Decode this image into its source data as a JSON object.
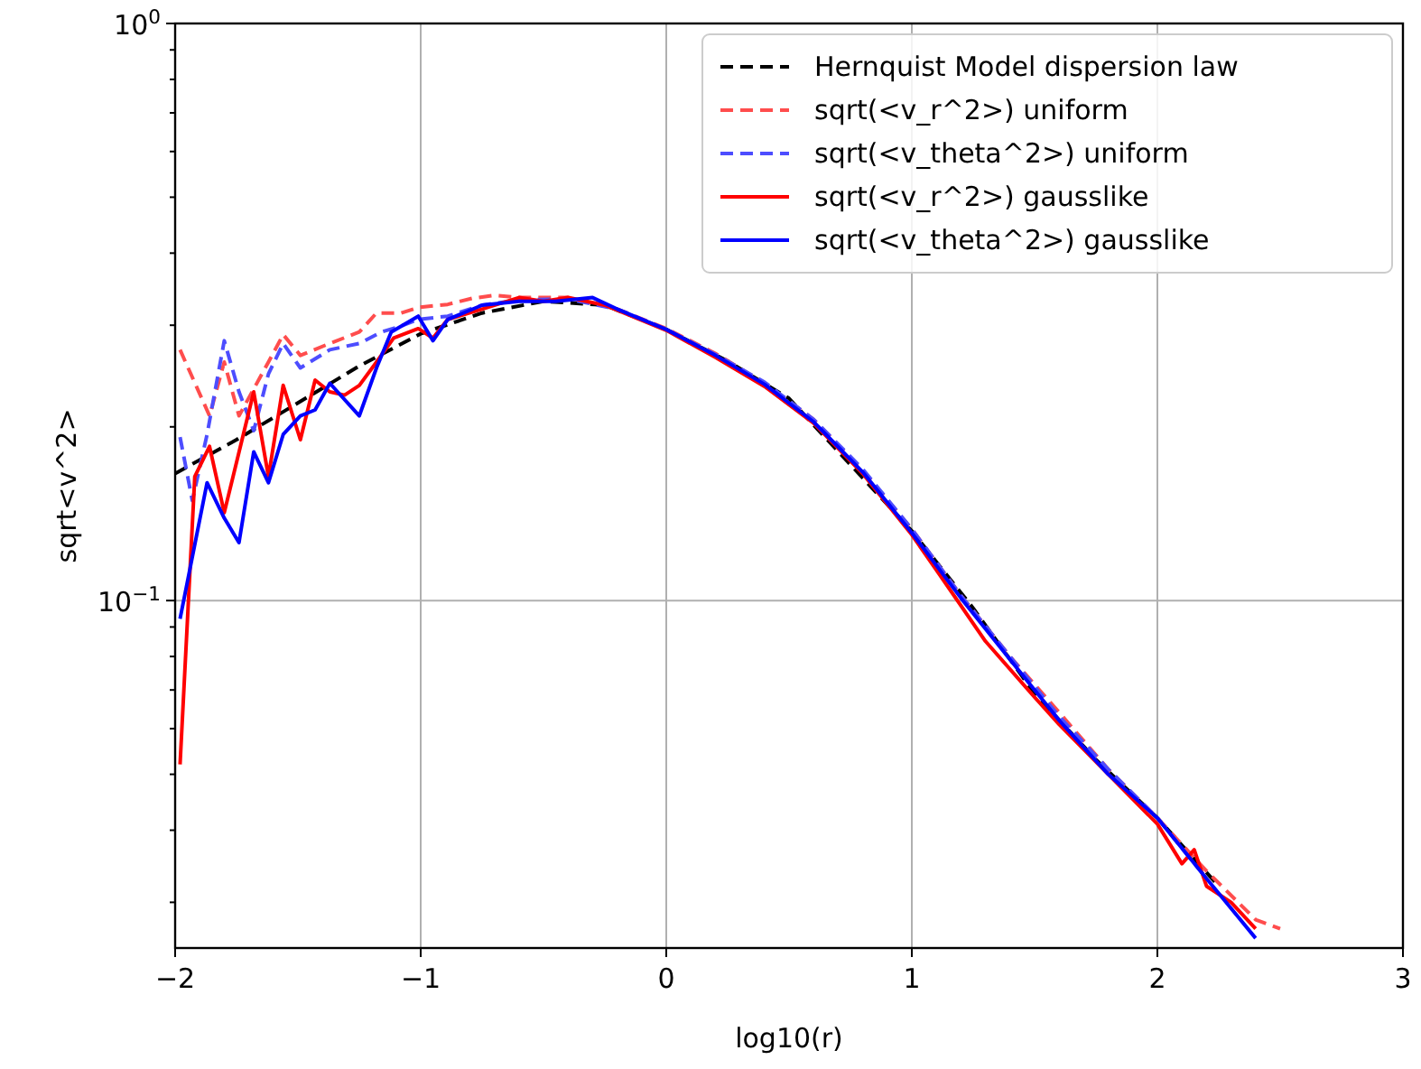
{
  "chart_data": {
    "type": "line",
    "xlabel": "log10(r)",
    "ylabel": "sqrt<v^2>",
    "log": "y",
    "grid": true,
    "legend": "top right",
    "xlim": [
      -2,
      3
    ],
    "ylim": [
      0.025,
      1
    ],
    "xticks": [
      {
        "value": -2,
        "label": "−2"
      },
      {
        "value": -1,
        "label": "−1"
      },
      0,
      1,
      2,
      3
    ],
    "yticks": [
      {
        "value": 0.03,
        "label": null
      },
      {
        "value": 0.04,
        "label": null
      },
      {
        "value": 0.05,
        "label": null
      },
      {
        "value": 0.06,
        "label": null
      },
      {
        "value": 0.07,
        "label": null
      },
      {
        "value": 0.08,
        "label": null
      },
      {
        "value": 0.09,
        "label": null
      },
      {
        "value": 0.1,
        "label": "10$^{−1}$"
      },
      {
        "value": 0.2,
        "label": null
      },
      {
        "value": 0.3,
        "label": null
      },
      {
        "value": 0.4,
        "label": null
      },
      {
        "value": 0.5,
        "label": null
      },
      {
        "value": 0.6,
        "label": null
      },
      {
        "value": 0.7,
        "label": null
      },
      {
        "value": 0.8,
        "label": null
      },
      {
        "value": 0.9,
        "label": null
      },
      {
        "value": 1,
        "label": "10$^{0}$"
      }
    ],
    "series": [
      {
        "name": "Hernquist Model dispersion law",
        "color": "#000000",
        "line_style": "dashed",
        "x": [
          -2,
          -1.75,
          -1.5,
          -1.25,
          -1,
          -0.75,
          -0.5,
          -0.25,
          0,
          0.25,
          0.5,
          0.75,
          1,
          1.25,
          1.5,
          1.75,
          2,
          2.25
        ],
        "values": [
          0.166,
          0.19,
          0.22,
          0.255,
          0.29,
          0.315,
          0.33,
          0.325,
          0.295,
          0.26,
          0.224,
          0.172,
          0.132,
          0.097,
          0.069,
          0.053,
          0.042,
          0.032
        ]
      },
      {
        "name": "sqrt(<v_r^2>) uniform",
        "color": "#ff4d4d",
        "line_style": "dashed",
        "x": [
          -1.98,
          -1.86,
          -1.8,
          -1.74,
          -1.62,
          -1.56,
          -1.49,
          -1.37,
          -1.25,
          -1.18,
          -1.08,
          -1.01,
          -0.89,
          -0.79,
          -0.7,
          -0.6,
          -0.4,
          -0.2,
          0,
          0.2,
          0.4,
          0.6,
          0.8,
          1,
          1.2,
          1.4,
          1.6,
          1.8,
          2,
          2.2,
          2.4,
          2.5
        ],
        "values": [
          0.272,
          0.209,
          0.259,
          0.209,
          0.259,
          0.289,
          0.266,
          0.279,
          0.292,
          0.315,
          0.315,
          0.322,
          0.326,
          0.334,
          0.338,
          0.335,
          0.335,
          0.32,
          0.296,
          0.268,
          0.238,
          0.206,
          0.168,
          0.133,
          0.102,
          0.08,
          0.064,
          0.051,
          0.042,
          0.034,
          0.028,
          0.027
        ]
      },
      {
        "name": "sqrt(<v_theta^2>) uniform",
        "color": "#4d4dff",
        "line_style": "dashed",
        "x": [
          -1.98,
          -1.93,
          -1.87,
          -1.8,
          -1.74,
          -1.68,
          -1.62,
          -1.56,
          -1.49,
          -1.37,
          -1.25,
          -1.16,
          -1.08,
          -1.01,
          -0.89,
          -0.75,
          -0.6,
          -0.4,
          -0.2,
          0,
          0.2,
          0.4,
          0.6,
          0.8,
          1,
          1.2,
          1.4,
          1.6,
          1.8,
          2,
          2.2
        ],
        "values": [
          0.192,
          0.149,
          0.194,
          0.282,
          0.23,
          0.197,
          0.247,
          0.279,
          0.253,
          0.272,
          0.279,
          0.292,
          0.299,
          0.307,
          0.311,
          0.325,
          0.332,
          0.333,
          0.32,
          0.295,
          0.267,
          0.239,
          0.206,
          0.169,
          0.133,
          0.102,
          0.08,
          0.063,
          0.051,
          0.042,
          0.033
        ]
      },
      {
        "name": "sqrt(<v_r^2>) gausslike",
        "color": "#ff0000",
        "line_style": "solid",
        "x": [
          -1.98,
          -1.92,
          -1.86,
          -1.8,
          -1.68,
          -1.62,
          -1.56,
          -1.49,
          -1.43,
          -1.37,
          -1.31,
          -1.25,
          -1.18,
          -1.11,
          -1.01,
          -0.95,
          -0.89,
          -0.75,
          -0.6,
          -0.5,
          -0.4,
          -0.25,
          0,
          0.2,
          0.4,
          0.6,
          0.8,
          1,
          1.1,
          1.3,
          1.5,
          1.6,
          1.8,
          2,
          2.1,
          2.15,
          2.2,
          2.3,
          2.4
        ],
        "values": [
          0.052,
          0.164,
          0.185,
          0.142,
          0.23,
          0.164,
          0.236,
          0.19,
          0.241,
          0.23,
          0.227,
          0.236,
          0.259,
          0.285,
          0.296,
          0.285,
          0.307,
          0.32,
          0.335,
          0.33,
          0.335,
          0.325,
          0.294,
          0.264,
          0.235,
          0.203,
          0.166,
          0.13,
          0.113,
          0.085,
          0.068,
          0.061,
          0.05,
          0.041,
          0.035,
          0.037,
          0.032,
          0.03,
          0.027
        ]
      },
      {
        "name": "sqrt(<v_theta^2>) gausslike",
        "color": "#0000ff",
        "line_style": "solid",
        "x": [
          -1.98,
          -1.87,
          -1.8,
          -1.74,
          -1.68,
          -1.62,
          -1.56,
          -1.49,
          -1.43,
          -1.37,
          -1.25,
          -1.18,
          -1.12,
          -1.01,
          -0.95,
          -0.89,
          -0.75,
          -0.6,
          -0.45,
          -0.3,
          -0.2,
          0,
          0.2,
          0.4,
          0.6,
          0.8,
          1,
          1.2,
          1.4,
          1.6,
          1.8,
          2,
          2.2,
          2.4
        ],
        "values": [
          0.093,
          0.16,
          0.139,
          0.126,
          0.181,
          0.16,
          0.194,
          0.209,
          0.214,
          0.238,
          0.209,
          0.253,
          0.292,
          0.311,
          0.282,
          0.307,
          0.325,
          0.33,
          0.33,
          0.335,
          0.32,
          0.295,
          0.266,
          0.237,
          0.204,
          0.167,
          0.131,
          0.101,
          0.079,
          0.062,
          0.05,
          0.042,
          0.033,
          0.026
        ]
      }
    ]
  }
}
